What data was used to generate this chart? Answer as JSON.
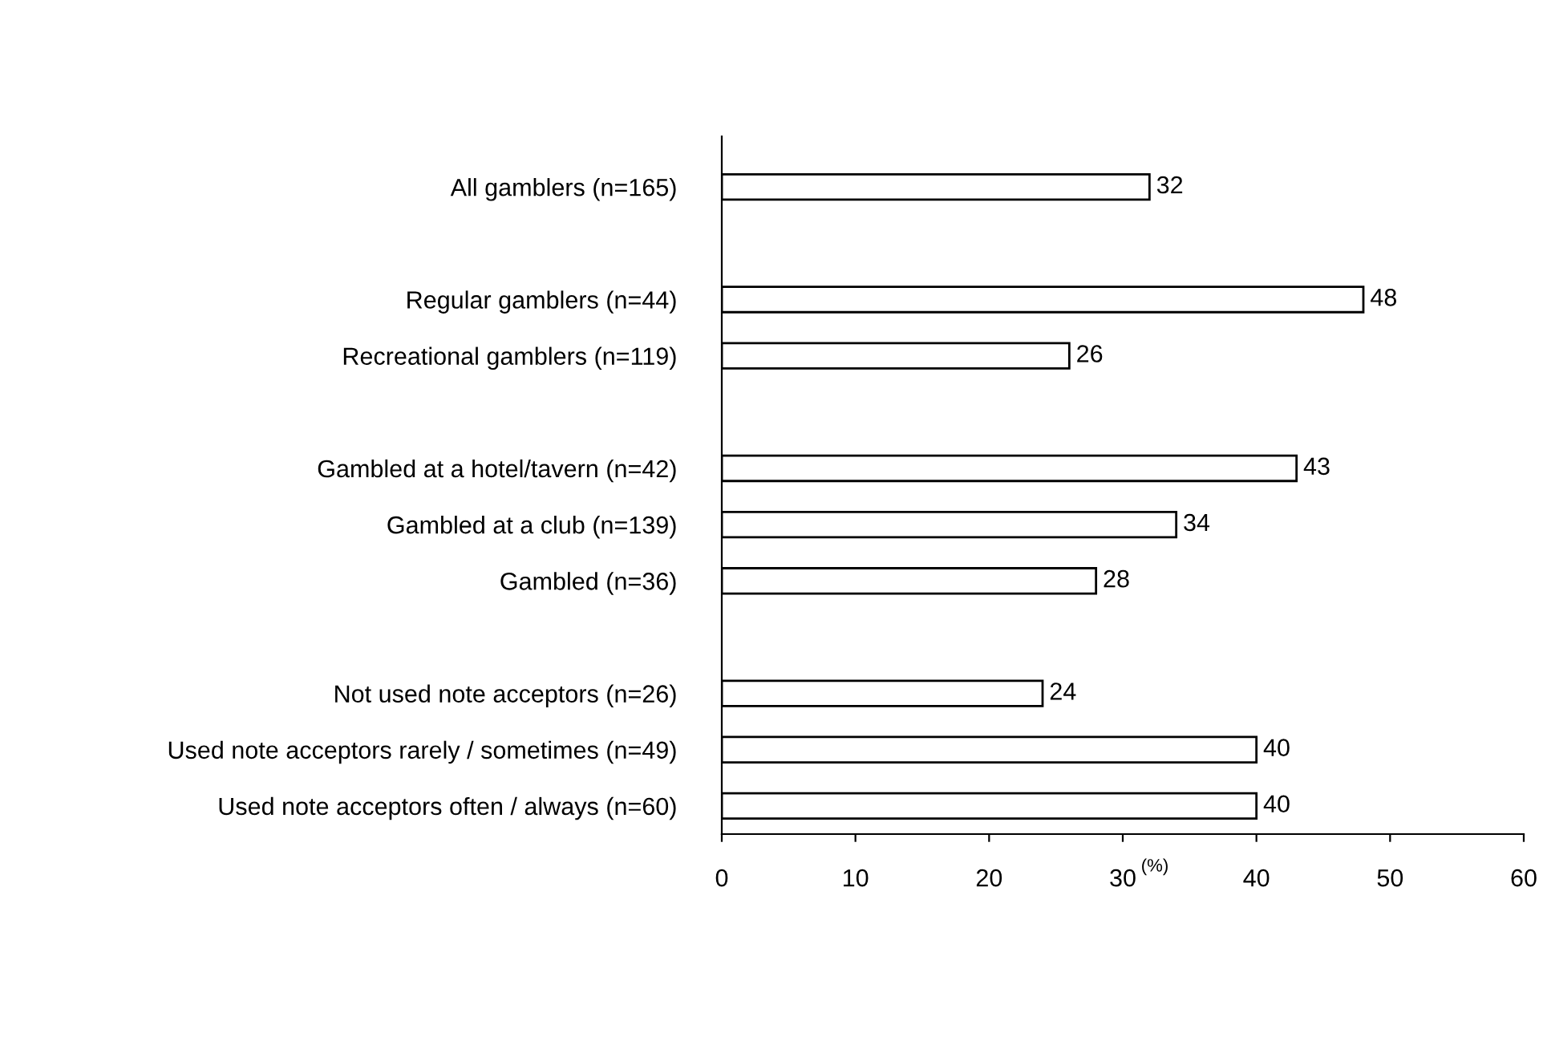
{
  "chart_data": {
    "type": "bar",
    "orientation": "horizontal",
    "categories": [
      "All gamblers (n=165)",
      null,
      "Regular gamblers (n=44)",
      "Recreational gamblers (n=119)",
      null,
      "Gambled at a hotel/tavern (n=42)",
      "Gambled at a club (n=139)",
      "Gambled (n=36)",
      null,
      "Not used note acceptors (n=26)",
      "Used note acceptors rarely / sometimes (n=49)",
      "Used note acceptors often / always (n=60)"
    ],
    "values": [
      32,
      null,
      48,
      26,
      null,
      43,
      34,
      28,
      null,
      24,
      40,
      40
    ],
    "color": "#ffffff",
    "xlabel": "(%)",
    "xlim": [
      0,
      60
    ],
    "xticks": [
      0,
      10,
      20,
      30,
      40,
      50,
      60
    ],
    "data_labels": true,
    "grid": false,
    "legend": false
  }
}
